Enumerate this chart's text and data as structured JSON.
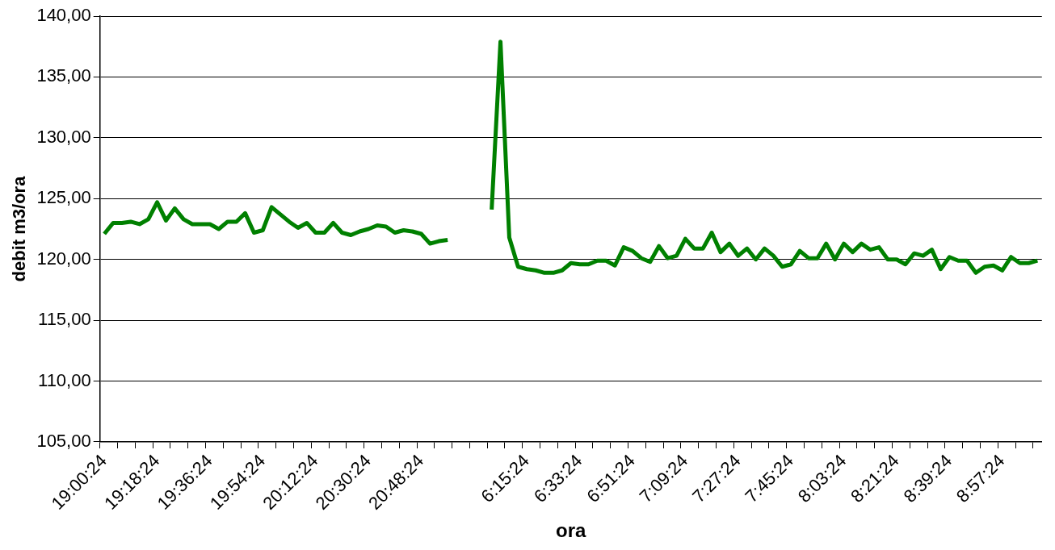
{
  "chart_data": {
    "type": "line",
    "xlabel": "ora",
    "ylabel": "debit m3/ora",
    "categories": [
      "19:00:24",
      null,
      null,
      null,
      null,
      null,
      "19:18:24",
      null,
      null,
      null,
      null,
      null,
      "19:36:24",
      null,
      null,
      null,
      null,
      null,
      "19:54:24",
      null,
      null,
      null,
      null,
      null,
      "20:12:24",
      null,
      null,
      null,
      null,
      null,
      "20:30:24",
      null,
      null,
      null,
      null,
      null,
      "20:48:24",
      null,
      null,
      null,
      null,
      null,
      null,
      null,
      null,
      null,
      null,
      null,
      "6:15:24",
      null,
      null,
      null,
      null,
      null,
      "6:33:24",
      null,
      null,
      null,
      null,
      null,
      "6:51:24",
      null,
      null,
      null,
      null,
      null,
      "7:09:24",
      null,
      null,
      null,
      null,
      null,
      "7:27:24",
      null,
      null,
      null,
      null,
      null,
      "7:45:24",
      null,
      null,
      null,
      null,
      null,
      "8:03:24",
      null,
      null,
      null,
      null,
      null,
      "8:21:24",
      null,
      null,
      null,
      null,
      null,
      "8:39:24",
      null,
      null,
      null,
      null,
      null,
      "8:57:24",
      null,
      null,
      null,
      null
    ],
    "series": [
      {
        "color": "#008000",
        "values": [
          122.1,
          123.0,
          123.0,
          123.1,
          122.9,
          123.3,
          124.7,
          123.2,
          124.2,
          123.3,
          122.9,
          122.9,
          122.9,
          122.5,
          123.1,
          123.1,
          123.8,
          122.2,
          122.4,
          124.3,
          123.7,
          123.1,
          122.6,
          123.0,
          122.2,
          122.2,
          123.0,
          122.2,
          122.0,
          122.3,
          122.5,
          122.8,
          122.7,
          122.2,
          122.4,
          122.3,
          122.1,
          121.3,
          121.5,
          121.6,
          null,
          null,
          null,
          null,
          124.1,
          137.9,
          121.8,
          119.4,
          119.2,
          119.1,
          118.9,
          118.9,
          119.1,
          119.7,
          119.6,
          119.6,
          119.9,
          119.9,
          119.5,
          121.0,
          120.7,
          120.1,
          119.8,
          121.1,
          120.1,
          120.3,
          121.7,
          120.9,
          120.9,
          122.2,
          120.6,
          121.3,
          120.3,
          120.9,
          120.0,
          120.9,
          120.3,
          119.4,
          119.6,
          120.7,
          120.1,
          120.1,
          121.3,
          120.0,
          121.3,
          120.6,
          121.3,
          120.8,
          121.0,
          120.0,
          120.0,
          119.6,
          120.5,
          120.3,
          120.8,
          119.2,
          120.2,
          119.9,
          119.9,
          118.9,
          119.4,
          119.5,
          119.1,
          120.2,
          119.7,
          119.7,
          119.9
        ]
      }
    ],
    "ylim": [
      105,
      140
    ],
    "yticks": [
      {
        "value": 105,
        "label": "105,00"
      },
      {
        "value": 110,
        "label": "110,00"
      },
      {
        "value": 115,
        "label": "115,00"
      },
      {
        "value": 120,
        "label": "120,00"
      },
      {
        "value": 125,
        "label": "125,00"
      },
      {
        "value": 130,
        "label": "130,00"
      },
      {
        "value": 135,
        "label": "135,00"
      },
      {
        "value": 140,
        "label": "140,00"
      }
    ],
    "grid": "y",
    "legend": false,
    "marker": "none",
    "line_style": "solid"
  }
}
